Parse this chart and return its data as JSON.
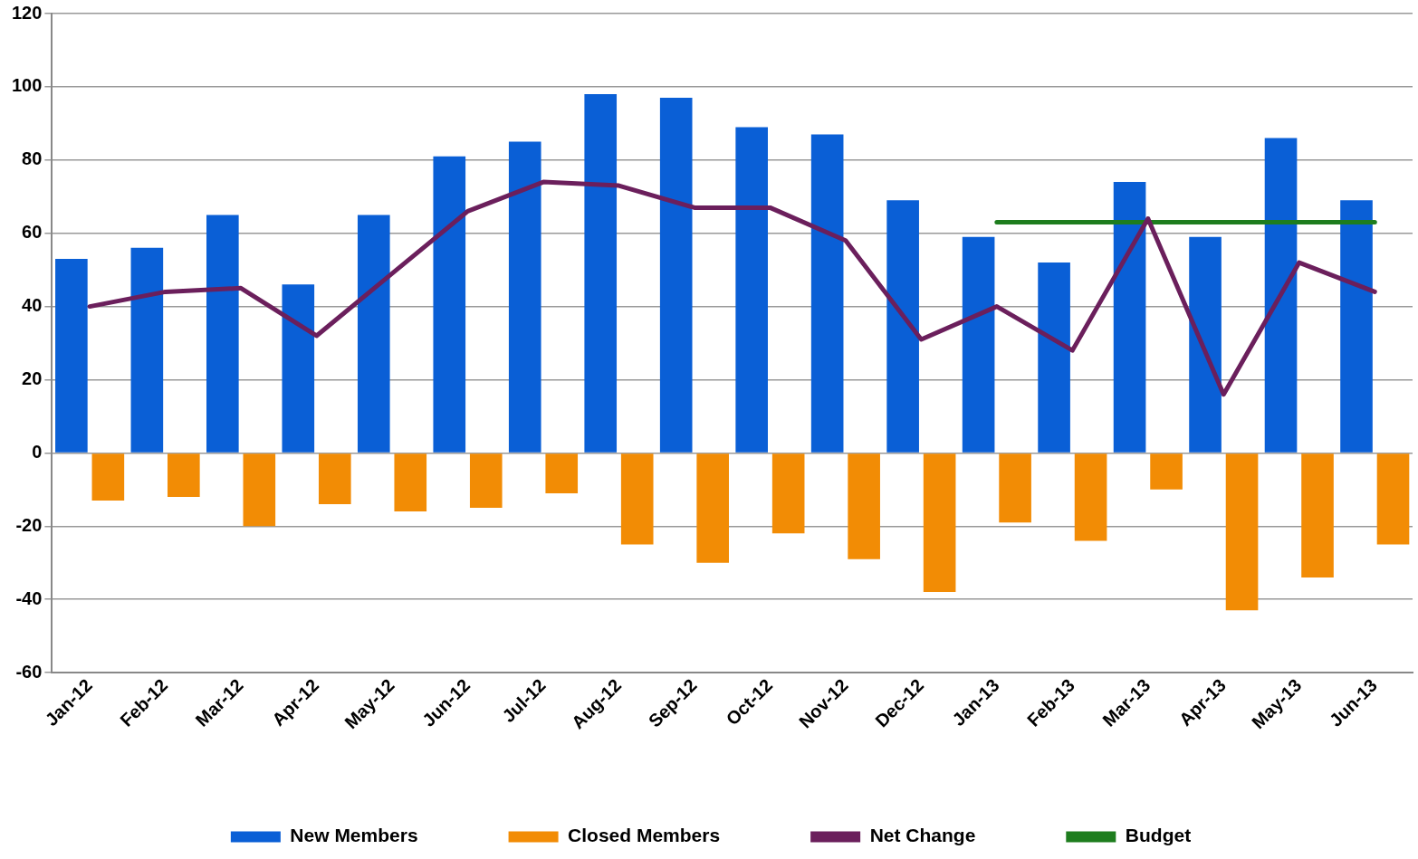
{
  "chart_data": {
    "type": "bar",
    "categories": [
      "Jan-12",
      "Feb-12",
      "Mar-12",
      "Apr-12",
      "May-12",
      "Jun-12",
      "Jul-12",
      "Aug-12",
      "Sep-12",
      "Oct-12",
      "Nov-12",
      "Dec-12",
      "Jan-13",
      "Feb-13",
      "Mar-13",
      "Apr-13",
      "May-13",
      "Jun-13"
    ],
    "series": [
      {
        "name": "New Members",
        "color": "#0a5fd6",
        "values": [
          53,
          56,
          65,
          46,
          65,
          81,
          85,
          98,
          97,
          89,
          87,
          69,
          59,
          52,
          74,
          59,
          86,
          69
        ]
      },
      {
        "name": "Closed Members",
        "color": "#f28c05",
        "values": [
          -13,
          -12,
          -20,
          -14,
          -16,
          -15,
          -11,
          -25,
          -30,
          -22,
          -29,
          -38,
          -19,
          -24,
          -10,
          -43,
          -34,
          -25
        ]
      },
      {
        "name": "Net Change",
        "type": "line",
        "color": "#6b1f5c",
        "values": [
          40,
          44,
          45,
          32,
          49,
          66,
          74,
          73,
          67,
          67,
          58,
          31,
          40,
          28,
          64,
          16,
          52,
          44
        ]
      },
      {
        "name": "Budget",
        "type": "line",
        "color": "#1e7d1e",
        "values": [
          null,
          null,
          null,
          null,
          null,
          null,
          null,
          null,
          null,
          null,
          null,
          null,
          63,
          63,
          63,
          63,
          63,
          63
        ]
      }
    ],
    "ylim": [
      -60,
      120
    ],
    "yticks": [
      -60,
      -40,
      -20,
      0,
      20,
      40,
      60,
      80,
      100,
      120
    ],
    "grid": "y",
    "legend": "bottom",
    "marker": "none",
    "line_style": "solid"
  }
}
